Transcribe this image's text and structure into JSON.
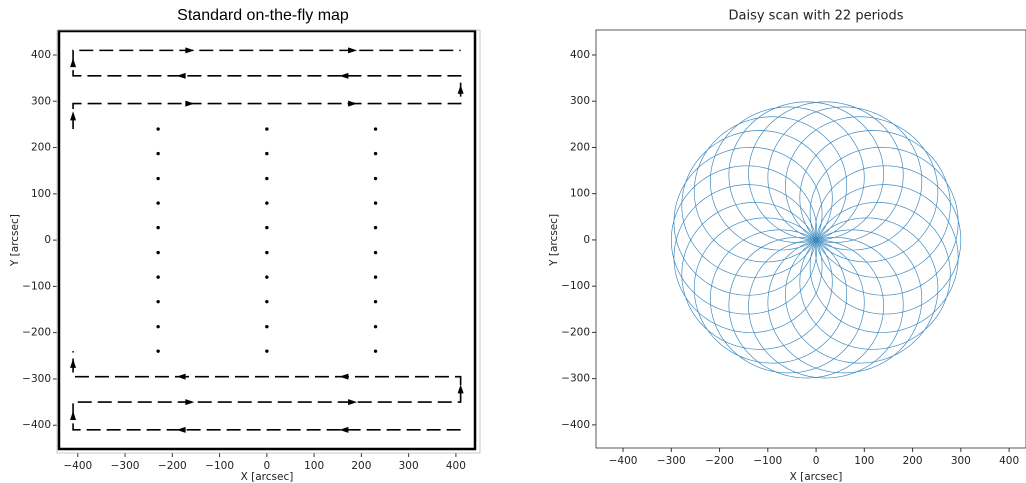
{
  "chart_data": [
    {
      "type": "scanmap",
      "title": "Standard on-the-fly map",
      "xlabel": "X [arcsec]",
      "ylabel": "Y [arcsec]",
      "xlim": [
        -444,
        451
      ],
      "ylim": [
        -460,
        454
      ],
      "xticks": [
        {
          "value": -400,
          "label": "−400"
        },
        {
          "value": -300,
          "label": "−300"
        },
        {
          "value": -200,
          "label": "−200"
        },
        {
          "value": -100,
          "label": "−100"
        },
        0,
        100,
        200,
        300,
        400
      ],
      "yticks": [
        {
          "value": -400,
          "label": "−400"
        },
        {
          "value": -300,
          "label": "−300"
        },
        {
          "value": -200,
          "label": "−200"
        },
        {
          "value": -100,
          "label": "−100"
        },
        0,
        100,
        200,
        300,
        400
      ],
      "color": "#000000",
      "paths": [
        {
          "x": [
            -410,
            -410,
            410,
            410,
            -410,
            -410,
            410
          ],
          "y": [
            240,
            295,
            295,
            355,
            355,
            410,
            410
          ]
        },
        {
          "x": [
            410,
            -410,
            -410,
            410,
            410,
            -410,
            -410
          ],
          "y": [
            -410,
            -410,
            -350,
            -350,
            -295,
            -295,
            -240
          ]
        }
      ],
      "points": {
        "x": [
          -230,
          -230,
          -230,
          -230,
          -230,
          -230,
          -230,
          -230,
          -230,
          -230,
          0,
          0,
          0,
          0,
          0,
          0,
          0,
          0,
          0,
          0,
          230,
          230,
          230,
          230,
          230,
          230,
          230,
          230,
          230,
          230
        ],
        "y": [
          240,
          187,
          133,
          80,
          27,
          -27,
          -80,
          -133,
          -187,
          -240,
          240,
          187,
          133,
          80,
          27,
          -27,
          -80,
          -133,
          -187,
          -240,
          240,
          187,
          133,
          80,
          27,
          -27,
          -80,
          -133,
          -187,
          -240
        ]
      }
    },
    {
      "type": "daisy",
      "title": "Daisy scan with 22 periods",
      "xlabel": "X [arcsec]",
      "ylabel": "Y [arcsec]",
      "xlim": [
        -456,
        435
      ],
      "ylim": [
        -450,
        454
      ],
      "xticks": [
        {
          "value": -400,
          "label": "−400"
        },
        {
          "value": -300,
          "label": "−300"
        },
        {
          "value": -200,
          "label": "−200"
        },
        {
          "value": -100,
          "label": "−100"
        },
        0,
        100,
        200,
        300,
        400
      ],
      "yticks": [
        {
          "value": -400,
          "label": "−400"
        },
        {
          "value": -300,
          "label": "−300"
        },
        {
          "value": -200,
          "label": "−200"
        },
        {
          "value": -100,
          "label": "−100"
        },
        0,
        100,
        200,
        300,
        400
      ],
      "color": "#1f77b4",
      "r_max": 300,
      "periods": 22
    }
  ]
}
